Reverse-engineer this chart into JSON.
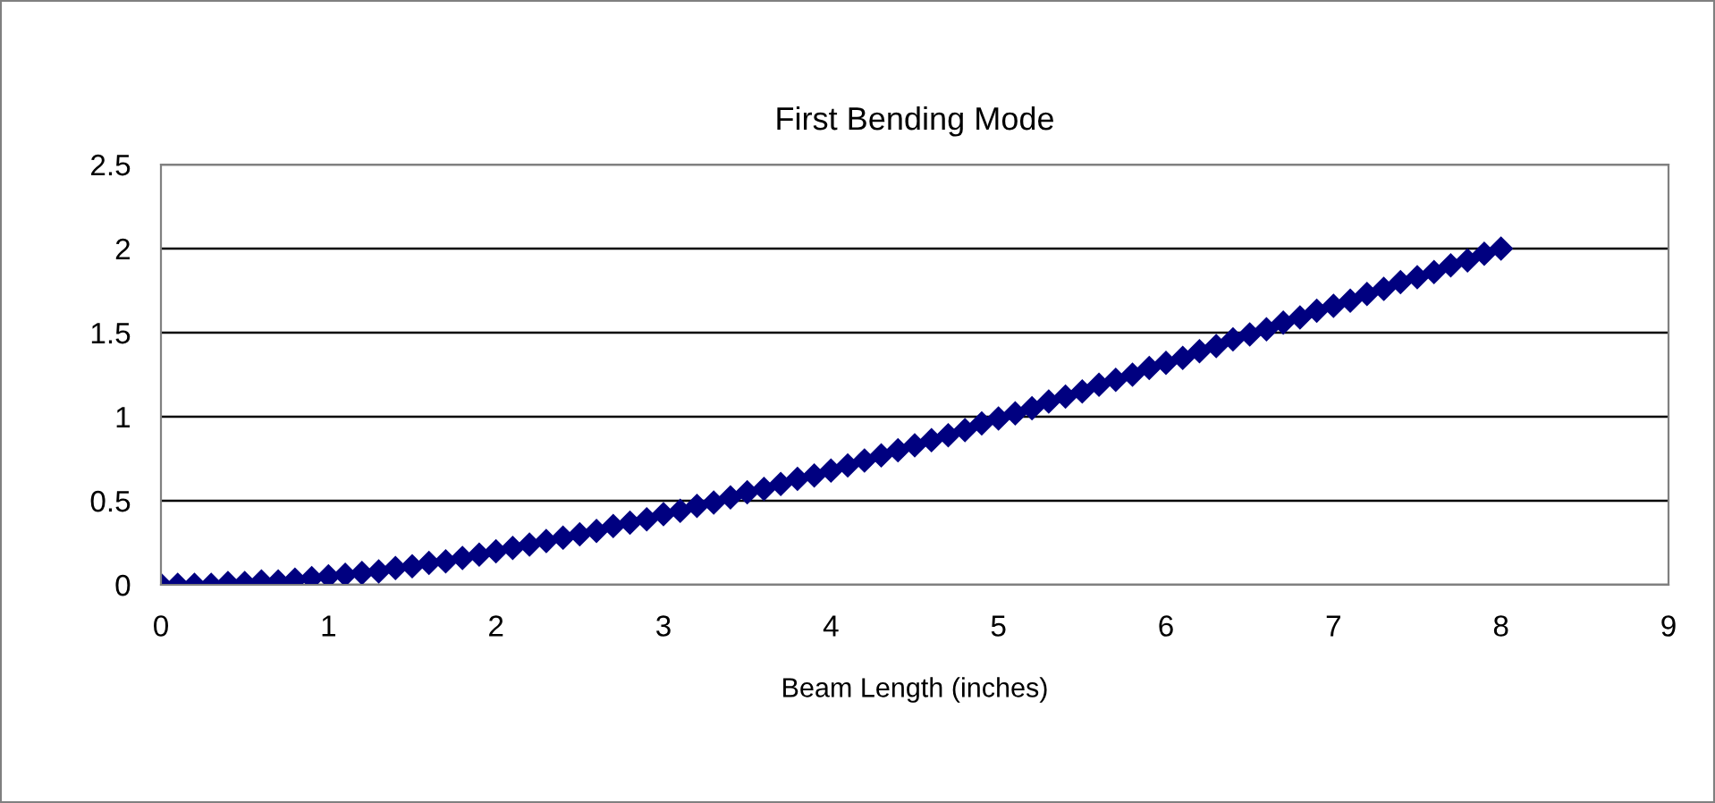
{
  "chart_data": {
    "type": "scatter",
    "title": "First Bending Mode",
    "xlabel": "Beam Length (inches)",
    "xlim": [
      0,
      9
    ],
    "xticks": [
      0,
      1,
      2,
      3,
      4,
      5,
      6,
      7,
      8,
      9
    ],
    "ylim": [
      0,
      2.5
    ],
    "yticks": [
      0,
      0.5,
      1,
      1.5,
      2,
      2.5
    ],
    "grid": "y",
    "legend": false,
    "marker": "diamond",
    "series": [
      {
        "color": "#000080",
        "x": [
          0,
          0.1,
          0.2,
          0.3,
          0.4,
          0.5,
          0.6,
          0.7,
          0.8,
          0.9,
          1,
          1.1,
          1.2,
          1.3,
          1.4,
          1.5,
          1.6,
          1.7,
          1.8,
          1.9,
          2,
          2.1,
          2.2,
          2.3,
          2.4,
          2.5,
          2.6,
          2.7,
          2.8,
          2.9,
          3,
          3.1,
          3.2,
          3.3,
          3.4,
          3.5,
          3.6,
          3.7,
          3.8,
          3.9,
          4,
          4.1,
          4.2,
          4.3,
          4.4,
          4.5,
          4.6,
          4.7,
          4.8,
          4.9,
          5,
          5.1,
          5.2,
          5.3,
          5.4,
          5.5,
          5.6,
          5.7,
          5.8,
          5.9,
          6,
          6.1,
          6.2,
          6.3,
          6.4,
          6.5,
          6.6,
          6.7,
          6.8,
          6.9,
          7,
          7.1,
          7.2,
          7.3,
          7.4,
          7.5,
          7.6,
          7.7,
          7.8,
          7.9,
          8
        ],
        "values": [
          0,
          0,
          0,
          0,
          0.01,
          0.01,
          0.02,
          0.02,
          0.03,
          0.04,
          0.05,
          0.06,
          0.07,
          0.08,
          0.1,
          0.11,
          0.13,
          0.14,
          0.16,
          0.18,
          0.2,
          0.22,
          0.24,
          0.26,
          0.28,
          0.3,
          0.32,
          0.35,
          0.37,
          0.39,
          0.42,
          0.44,
          0.47,
          0.49,
          0.52,
          0.55,
          0.57,
          0.6,
          0.63,
          0.65,
          0.68,
          0.71,
          0.74,
          0.77,
          0.8,
          0.83,
          0.86,
          0.89,
          0.92,
          0.96,
          0.99,
          1.02,
          1.05,
          1.09,
          1.12,
          1.15,
          1.19,
          1.22,
          1.25,
          1.29,
          1.32,
          1.35,
          1.39,
          1.42,
          1.46,
          1.49,
          1.52,
          1.56,
          1.59,
          1.63,
          1.66,
          1.69,
          1.73,
          1.76,
          1.8,
          1.83,
          1.86,
          1.9,
          1.93,
          1.97,
          2.0
        ]
      }
    ]
  }
}
